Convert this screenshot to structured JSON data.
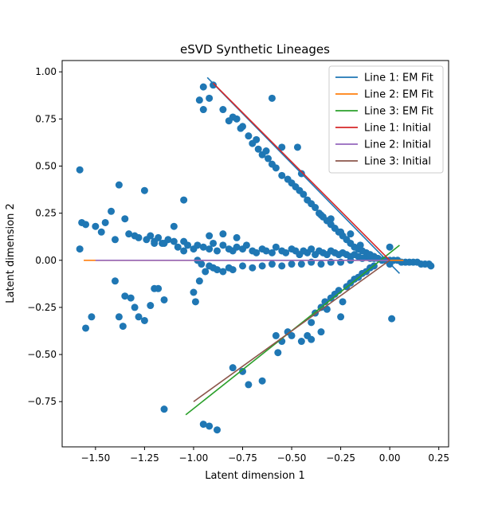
{
  "chart_data": {
    "type": "scatter",
    "title": "eSVD Synthetic Lineages",
    "xlabel": "Latent dimension 1",
    "ylabel": "Latent dimension 2",
    "xlim": [
      -1.67,
      0.3
    ],
    "ylim": [
      -0.99,
      1.06
    ],
    "xticks": [
      -1.5,
      -1.25,
      -1.0,
      -0.75,
      -0.5,
      -0.25,
      0.0,
      0.25
    ],
    "xtick_labels": [
      "−1.50",
      "−1.25",
      "−1.00",
      "−0.75",
      "−0.50",
      "−0.25",
      "0.00",
      "0.25"
    ],
    "yticks": [
      -0.75,
      -0.5,
      -0.25,
      0.0,
      0.25,
      0.5,
      0.75,
      1.0
    ],
    "ytick_labels": [
      "−0.75",
      "−0.50",
      "−0.25",
      "0.00",
      "0.25",
      "0.50",
      "0.75",
      "1.00"
    ],
    "grid": false,
    "legend_position": "top-right",
    "scatter_color": "#1f77b4",
    "points": [
      [
        -1.58,
        0.48
      ],
      [
        -1.57,
        0.2
      ],
      [
        -1.58,
        0.06
      ],
      [
        -1.55,
        -0.36
      ],
      [
        -1.52,
        -0.3
      ],
      [
        -1.55,
        0.19
      ],
      [
        -1.5,
        0.18
      ],
      [
        -1.47,
        0.15
      ],
      [
        -1.45,
        0.2
      ],
      [
        -1.42,
        0.26
      ],
      [
        -1.4,
        0.11
      ],
      [
        -1.38,
        0.4
      ],
      [
        -1.35,
        0.22
      ],
      [
        -1.33,
        0.14
      ],
      [
        -1.3,
        0.13
      ],
      [
        -1.28,
        0.12
      ],
      [
        -1.24,
        0.11
      ],
      [
        -1.22,
        0.13
      ],
      [
        -1.2,
        0.1
      ],
      [
        -1.18,
        0.12
      ],
      [
        -1.16,
        0.09
      ],
      [
        -1.13,
        0.11
      ],
      [
        -1.1,
        0.1
      ],
      [
        -1.08,
        0.07
      ],
      [
        -1.05,
        0.1
      ],
      [
        -1.03,
        0.08
      ],
      [
        -1.0,
        0.06
      ],
      [
        -0.98,
        0.08
      ],
      [
        -0.95,
        0.07
      ],
      [
        -0.92,
        0.06
      ],
      [
        -0.9,
        0.09
      ],
      [
        -0.88,
        0.05
      ],
      [
        -0.85,
        0.08
      ],
      [
        -0.82,
        0.06
      ],
      [
        -0.8,
        0.05
      ],
      [
        -0.78,
        0.07
      ],
      [
        -0.75,
        0.06
      ],
      [
        -0.73,
        0.08
      ],
      [
        -0.7,
        0.05
      ],
      [
        -0.68,
        0.04
      ],
      [
        -0.65,
        0.06
      ],
      [
        -0.63,
        0.05
      ],
      [
        -0.6,
        0.04
      ],
      [
        -0.58,
        0.07
      ],
      [
        -0.55,
        0.05
      ],
      [
        -0.53,
        0.04
      ],
      [
        -0.5,
        0.06
      ],
      [
        -0.48,
        0.05
      ],
      [
        -0.46,
        0.03
      ],
      [
        -0.44,
        0.05
      ],
      [
        -0.42,
        0.04
      ],
      [
        -0.4,
        0.06
      ],
      [
        -0.38,
        0.03
      ],
      [
        -0.36,
        0.05
      ],
      [
        -0.34,
        0.04
      ],
      [
        -0.32,
        0.03
      ],
      [
        -0.3,
        0.05
      ],
      [
        -0.28,
        0.04
      ],
      [
        -0.26,
        0.03
      ],
      [
        -0.24,
        0.04
      ],
      [
        -0.22,
        0.03
      ],
      [
        -0.2,
        0.02
      ],
      [
        -0.18,
        0.03
      ],
      [
        -0.16,
        0.02
      ],
      [
        -0.14,
        0.01
      ],
      [
        -0.12,
        0.02
      ],
      [
        -0.1,
        0.01
      ],
      [
        -0.08,
        0.01
      ],
      [
        -0.06,
        0.01
      ],
      [
        -0.04,
        0.0
      ],
      [
        -0.02,
        0.0
      ],
      [
        0.0,
        0.0
      ],
      [
        0.02,
        0.0
      ],
      [
        0.04,
        0.0
      ],
      [
        0.06,
        -0.01
      ],
      [
        0.08,
        -0.01
      ],
      [
        0.1,
        -0.01
      ],
      [
        0.12,
        -0.01
      ],
      [
        0.14,
        -0.01
      ],
      [
        0.16,
        -0.02
      ],
      [
        0.18,
        -0.02
      ],
      [
        0.2,
        -0.02
      ],
      [
        0.21,
        -0.03
      ],
      [
        -1.4,
        -0.11
      ],
      [
        -1.35,
        -0.19
      ],
      [
        -1.32,
        -0.2
      ],
      [
        -1.3,
        -0.25
      ],
      [
        -1.28,
        -0.3
      ],
      [
        -1.25,
        -0.32
      ],
      [
        -1.22,
        -0.24
      ],
      [
        -1.2,
        -0.15
      ],
      [
        -1.18,
        -0.15
      ],
      [
        -1.15,
        -0.21
      ],
      [
        -1.38,
        -0.3
      ],
      [
        -1.36,
        -0.35
      ],
      [
        -1.0,
        -0.17
      ],
      [
        -0.99,
        -0.22
      ],
      [
        -0.97,
        -0.11
      ],
      [
        -1.25,
        0.37
      ],
      [
        -1.2,
        0.09
      ],
      [
        -1.15,
        0.09
      ],
      [
        -1.05,
        0.05
      ],
      [
        -0.98,
        0.0
      ],
      [
        -0.96,
        -0.02
      ],
      [
        -0.94,
        -0.06
      ],
      [
        -0.92,
        -0.03
      ],
      [
        -0.9,
        -0.04
      ],
      [
        -0.88,
        -0.05
      ],
      [
        -0.85,
        -0.06
      ],
      [
        -0.82,
        -0.04
      ],
      [
        -0.8,
        -0.05
      ],
      [
        -0.75,
        -0.03
      ],
      [
        -0.7,
        -0.04
      ],
      [
        -0.65,
        -0.03
      ],
      [
        -0.6,
        -0.02
      ],
      [
        -0.55,
        -0.03
      ],
      [
        -0.5,
        -0.02
      ],
      [
        -0.45,
        -0.02
      ],
      [
        -0.4,
        -0.01
      ],
      [
        -0.35,
        -0.02
      ],
      [
        -0.3,
        -0.01
      ],
      [
        -0.25,
        -0.01
      ],
      [
        -0.2,
        0.0
      ],
      [
        -1.05,
        0.32
      ],
      [
        -1.1,
        0.18
      ],
      [
        -0.92,
        0.13
      ],
      [
        -0.85,
        0.14
      ],
      [
        -0.78,
        0.12
      ],
      [
        -0.95,
        0.92
      ],
      [
        -0.9,
        0.93
      ],
      [
        -0.92,
        0.86
      ],
      [
        -0.95,
        0.8
      ],
      [
        -0.97,
        0.85
      ],
      [
        -0.85,
        0.8
      ],
      [
        -0.78,
        0.75
      ],
      [
        -0.8,
        0.76
      ],
      [
        -0.75,
        0.71
      ],
      [
        -0.72,
        0.66
      ],
      [
        -0.7,
        0.62
      ],
      [
        -0.67,
        0.59
      ],
      [
        -0.65,
        0.56
      ],
      [
        -0.62,
        0.54
      ],
      [
        -0.6,
        0.51
      ],
      [
        -0.58,
        0.49
      ],
      [
        -0.55,
        0.45
      ],
      [
        -0.52,
        0.43
      ],
      [
        -0.5,
        0.41
      ],
      [
        -0.48,
        0.39
      ],
      [
        -0.46,
        0.37
      ],
      [
        -0.44,
        0.35
      ],
      [
        -0.42,
        0.32
      ],
      [
        -0.4,
        0.3
      ],
      [
        -0.38,
        0.28
      ],
      [
        -0.36,
        0.25
      ],
      [
        -0.34,
        0.23
      ],
      [
        -0.32,
        0.21
      ],
      [
        -0.3,
        0.19
      ],
      [
        -0.28,
        0.17
      ],
      [
        -0.26,
        0.15
      ],
      [
        -0.24,
        0.13
      ],
      [
        -0.22,
        0.11
      ],
      [
        -0.2,
        0.09
      ],
      [
        -0.18,
        0.07
      ],
      [
        -0.16,
        0.06
      ],
      [
        -0.14,
        0.05
      ],
      [
        -0.12,
        0.04
      ],
      [
        -0.1,
        0.03
      ],
      [
        -0.08,
        0.02
      ],
      [
        -0.6,
        0.86
      ],
      [
        -0.55,
        0.6
      ],
      [
        -0.47,
        0.6
      ],
      [
        -0.45,
        0.46
      ],
      [
        -0.35,
        0.24
      ],
      [
        -0.3,
        0.22
      ],
      [
        -0.25,
        0.15
      ],
      [
        -0.2,
        0.14
      ],
      [
        -0.15,
        0.08
      ],
      [
        0.0,
        0.07
      ],
      [
        -0.82,
        0.74
      ],
      [
        -0.76,
        0.7
      ],
      [
        -0.68,
        0.64
      ],
      [
        -0.63,
        0.58
      ],
      [
        -0.88,
        -0.9
      ],
      [
        -0.92,
        -0.88
      ],
      [
        -0.95,
        -0.87
      ],
      [
        -1.15,
        -0.79
      ],
      [
        -0.8,
        -0.57
      ],
      [
        -0.75,
        -0.59
      ],
      [
        -0.72,
        -0.66
      ],
      [
        -0.65,
        -0.64
      ],
      [
        -0.57,
        -0.49
      ],
      [
        -0.55,
        -0.43
      ],
      [
        -0.52,
        -0.38
      ],
      [
        -0.5,
        -0.4
      ],
      [
        -0.45,
        -0.43
      ],
      [
        -0.42,
        -0.4
      ],
      [
        -0.4,
        -0.33
      ],
      [
        -0.38,
        -0.28
      ],
      [
        -0.35,
        -0.25
      ],
      [
        -0.33,
        -0.22
      ],
      [
        -0.3,
        -0.2
      ],
      [
        -0.28,
        -0.18
      ],
      [
        -0.26,
        -0.16
      ],
      [
        -0.24,
        -0.22
      ],
      [
        -0.22,
        -0.14
      ],
      [
        -0.2,
        -0.12
      ],
      [
        -0.18,
        -0.1
      ],
      [
        -0.16,
        -0.09
      ],
      [
        -0.14,
        -0.07
      ],
      [
        -0.12,
        -0.06
      ],
      [
        -0.1,
        -0.04
      ],
      [
        -0.08,
        -0.03
      ],
      [
        -0.58,
        -0.4
      ],
      [
        -0.4,
        -0.42
      ],
      [
        -0.35,
        -0.38
      ],
      [
        -0.32,
        -0.26
      ],
      [
        -0.25,
        -0.3
      ],
      [
        0.01,
        -0.31
      ],
      [
        0.0,
        -0.02
      ]
    ],
    "series": [
      {
        "name": "Line 1: EM Fit",
        "color": "#1f77b4",
        "x": [
          -0.93,
          0.05
        ],
        "y": [
          0.97,
          -0.07
        ]
      },
      {
        "name": "Line 2: EM Fit",
        "color": "#ff7f0e",
        "x": [
          -1.56,
          0.07
        ],
        "y": [
          0.0,
          0.0
        ]
      },
      {
        "name": "Line 3: EM Fit",
        "color": "#2ca02c",
        "x": [
          -1.04,
          0.05
        ],
        "y": [
          -0.82,
          0.08
        ]
      },
      {
        "name": "Line 1: Initial",
        "color": "#d62728",
        "x": [
          -0.9,
          0.0
        ],
        "y": [
          0.94,
          0.0
        ]
      },
      {
        "name": "Line 2: Initial",
        "color": "#9467bd",
        "x": [
          -1.5,
          0.0
        ],
        "y": [
          0.0,
          0.0
        ]
      },
      {
        "name": "Line 3: Initial",
        "color": "#8c564b",
        "x": [
          -1.0,
          0.0
        ],
        "y": [
          -0.75,
          0.0
        ]
      }
    ]
  }
}
